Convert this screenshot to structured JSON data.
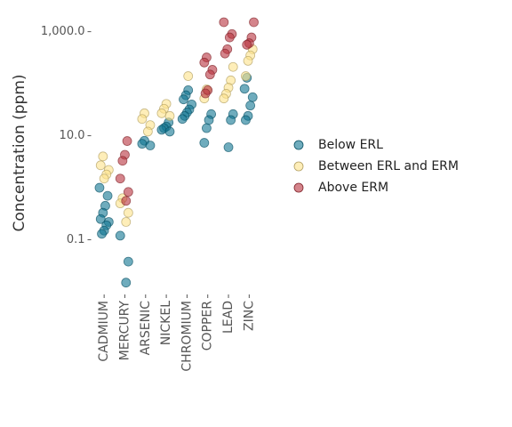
{
  "chart_data": {
    "type": "scatter",
    "y_label": "Concentration (ppm)",
    "y_log": true,
    "ylim": [
      0.01,
      2000
    ],
    "yticks": [
      0.1,
      {
        "value": 10,
        "label": "10.0"
      },
      {
        "value": 1000,
        "label": "1,000.0"
      }
    ],
    "categories": [
      "CADMIUM",
      "MERCURY",
      "ARSENIC",
      "NICKEL",
      "CHROMIUM",
      "COPPER",
      "LEAD",
      "ZINC"
    ],
    "legend": "right",
    "series": [
      {
        "name": "Below ERL",
        "color": "#0f7491",
        "x": [
          "CADMIUM",
          "CADMIUM",
          "CADMIUM",
          "CADMIUM",
          "CADMIUM",
          "CADMIUM",
          "CADMIUM",
          "CADMIUM",
          "CADMIUM",
          "MERCURY",
          "MERCURY",
          "MERCURY",
          "ARSENIC",
          "ARSENIC",
          "ARSENIC",
          "NICKEL",
          "NICKEL",
          "NICKEL",
          "NICKEL",
          "NICKEL",
          "CHROMIUM",
          "CHROMIUM",
          "CHROMIUM",
          "CHROMIUM",
          "CHROMIUM",
          "CHROMIUM",
          "CHROMIUM",
          "CHROMIUM",
          "COPPER",
          "COPPER",
          "COPPER",
          "COPPER",
          "LEAD",
          "LEAD",
          "LEAD",
          "ZINC",
          "ZINC",
          "ZINC",
          "ZINC",
          "ZINC",
          "ZINC"
        ],
        "values": [
          1.0,
          0.7,
          0.45,
          0.33,
          0.25,
          0.22,
          0.19,
          0.15,
          0.13,
          0.12,
          0.038,
          0.015,
          8.0,
          7.0,
          6.5,
          18,
          15,
          14,
          13,
          12,
          75,
          60,
          50,
          40,
          32,
          28,
          24,
          21,
          26,
          20,
          14,
          7.3,
          26,
          20,
          6,
          130,
          80,
          55,
          38,
          24,
          20
        ]
      },
      {
        "name": "Between ERL and ERM",
        "color": "#fde28a",
        "x": [
          "CADMIUM",
          "CADMIUM",
          "CADMIUM",
          "CADMIUM",
          "CADMIUM",
          "MERCURY",
          "MERCURY",
          "MERCURY",
          "MERCURY",
          "ARSENIC",
          "ARSENIC",
          "ARSENIC",
          "ARSENIC",
          "NICKEL",
          "NICKEL",
          "NICKEL",
          "NICKEL",
          "CHROMIUM",
          "COPPER",
          "COPPER",
          "LEAD",
          "LEAD",
          "LEAD",
          "LEAD",
          "LEAD",
          "ZINC",
          "ZINC",
          "ZINC",
          "ZINC"
        ],
        "values": [
          4.0,
          2.7,
          2.2,
          1.8,
          1.5,
          0.63,
          0.5,
          0.33,
          0.22,
          27,
          21,
          16,
          12,
          41,
          33,
          27,
          24,
          140,
          78,
          52,
          210,
          116,
          84,
          64,
          52,
          460,
          350,
          275,
          140
        ]
      },
      {
        "name": "Above ERM",
        "color": "#b8323d",
        "x": [
          "MERCURY",
          "MERCURY",
          "MERCURY",
          "MERCURY",
          "MERCURY",
          "MERCURY",
          "COPPER",
          "COPPER",
          "COPPER",
          "COPPER",
          "COPPER",
          "COPPER",
          "LEAD",
          "LEAD",
          "LEAD",
          "LEAD",
          "LEAD",
          "ZINC",
          "ZINC",
          "ZINC",
          "ZINC"
        ],
        "values": [
          7.9,
          4.3,
          3.3,
          1.5,
          0.83,
          0.56,
          320,
          255,
          185,
          150,
          75,
          65,
          1520,
          900,
          775,
          460,
          380,
          1520,
          775,
          600,
          560
        ]
      }
    ]
  }
}
